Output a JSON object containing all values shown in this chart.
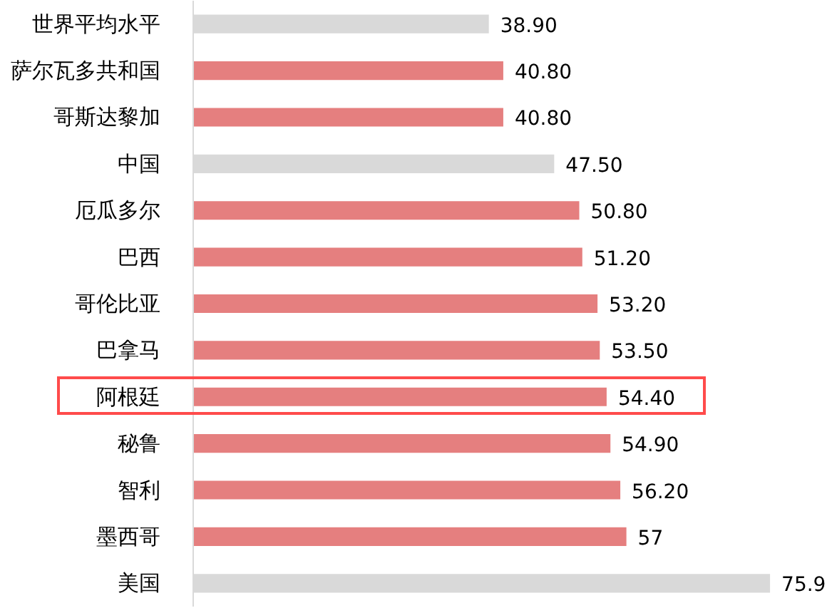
{
  "chart_data": {
    "type": "bar",
    "orientation": "horizontal",
    "categories": [
      "世界平均水平",
      "萨尔瓦多共和国",
      "哥斯达黎加",
      "中国",
      "厄瓜多尔",
      "巴西",
      "哥伦比亚",
      "巴拿马",
      "阿根廷",
      "秘鲁",
      "智利",
      "墨西哥",
      "美国"
    ],
    "values": [
      38.9,
      40.8,
      40.8,
      47.5,
      50.8,
      51.2,
      53.2,
      53.5,
      54.4,
      54.9,
      56.2,
      57,
      75.9
    ],
    "colors": [
      "#d9d9d9",
      "#e57f7f",
      "#e57f7f",
      "#d9d9d9",
      "#e57f7f",
      "#e57f7f",
      "#e57f7f",
      "#e57f7f",
      "#e57f7f",
      "#e57f7f",
      "#e57f7f",
      "#e57f7f",
      "#d9d9d9"
    ],
    "value_labels": [
      "38.90",
      "40.80",
      "40.80",
      "47.50",
      "50.80",
      "51.20",
      "53.20",
      "53.50",
      "54.40",
      "54.90",
      "56.20",
      "57",
      "75.9"
    ],
    "tick_labels": "y"
  }
}
